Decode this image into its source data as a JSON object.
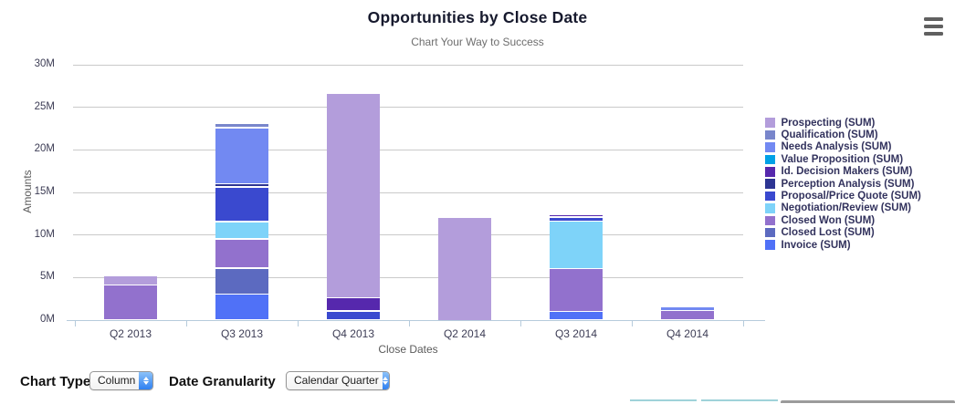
{
  "header": {
    "title": "Opportunities by Close Date",
    "subtitle": "Chart Your Way to Success"
  },
  "chart_data": {
    "type": "bar",
    "stacked": true,
    "title": "Opportunities by Close Date",
    "subtitle": "Chart Your Way to Success",
    "xlabel": "Close Dates",
    "ylabel": "Amounts",
    "ylim": [
      0,
      30
    ],
    "ytick_step": 5,
    "ytick_suffix": "M",
    "grid": true,
    "legend_position": "right",
    "stack_order": "reverse_of_series_list_bottom_is_last",
    "units": "millions",
    "categories": [
      "Q2 2013",
      "Q3 2013",
      "Q4 2013",
      "Q2 2014",
      "Q3 2014",
      "Q4 2014"
    ],
    "series": [
      {
        "name": "Prospecting",
        "legend_label": "Prospecting (SUM)",
        "color": "#b39ddb",
        "values": [
          1.1,
          0,
          24.0,
          12.0,
          0,
          0
        ]
      },
      {
        "name": "Qualification",
        "legend_label": "Qualification (SUM)",
        "color": "#7986cb",
        "values": [
          0,
          0.5,
          0,
          0,
          0,
          0
        ]
      },
      {
        "name": "Needs Analysis",
        "legend_label": "Needs Analysis (SUM)",
        "color": "#7289f2",
        "values": [
          0,
          6.6,
          0,
          0,
          0,
          0.5
        ]
      },
      {
        "name": "Value Proposition",
        "legend_label": "Value Proposition (SUM)",
        "color": "#00a1e6",
        "values": [
          0,
          0,
          0,
          0,
          0,
          0
        ]
      },
      {
        "name": "Id. Decision Makers",
        "legend_label": "Id. Decision Makers (SUM)",
        "color": "#5628ad",
        "values": [
          0,
          0,
          1.55,
          0,
          0.25,
          0
        ]
      },
      {
        "name": "Perception Analysis",
        "legend_label": "Perception Analysis (SUM)",
        "color": "#2d3593",
        "values": [
          0,
          0.4,
          0,
          0,
          0,
          0
        ]
      },
      {
        "name": "Proposal/Price Quote",
        "legend_label": "Proposal/Price Quote (SUM)",
        "color": "#3a49cf",
        "values": [
          0,
          4.05,
          0.95,
          0,
          0.5,
          0
        ]
      },
      {
        "name": "Negotiation/Review",
        "legend_label": "Negotiation/Review (SUM)",
        "color": "#7ed3f9",
        "values": [
          0,
          2.05,
          0,
          0,
          5.6,
          0
        ]
      },
      {
        "name": "Closed Won",
        "legend_label": "Closed Won (SUM)",
        "color": "#9271cd",
        "values": [
          4.0,
          3.4,
          0,
          0,
          5.0,
          1.0
        ]
      },
      {
        "name": "Closed Lost",
        "legend_label": "Closed Lost (SUM)",
        "color": "#5c6ac0",
        "values": [
          0,
          3.1,
          0,
          0,
          0,
          0
        ]
      },
      {
        "name": "Invoice",
        "legend_label": "Invoice (SUM)",
        "color": "#5071f7",
        "values": [
          0,
          2.9,
          0,
          0,
          0.9,
          0
        ]
      }
    ]
  },
  "controls": {
    "chart_type_label": "Chart Type",
    "chart_type_value": "Column",
    "date_granularity_label": "Date Granularity",
    "date_granularity_value": "Calendar Quarter"
  },
  "colors": {
    "gridline": "#cacaca",
    "axis_line": "#b6cbdc",
    "title_text": "#16192d",
    "subtitle_text": "#6e6e6e",
    "legend_text": "#32325d",
    "select_cap_blue": "#2f80f1",
    "fragment_teal": "#9fd2d9",
    "fragment_gray": "#9b9b9b"
  }
}
